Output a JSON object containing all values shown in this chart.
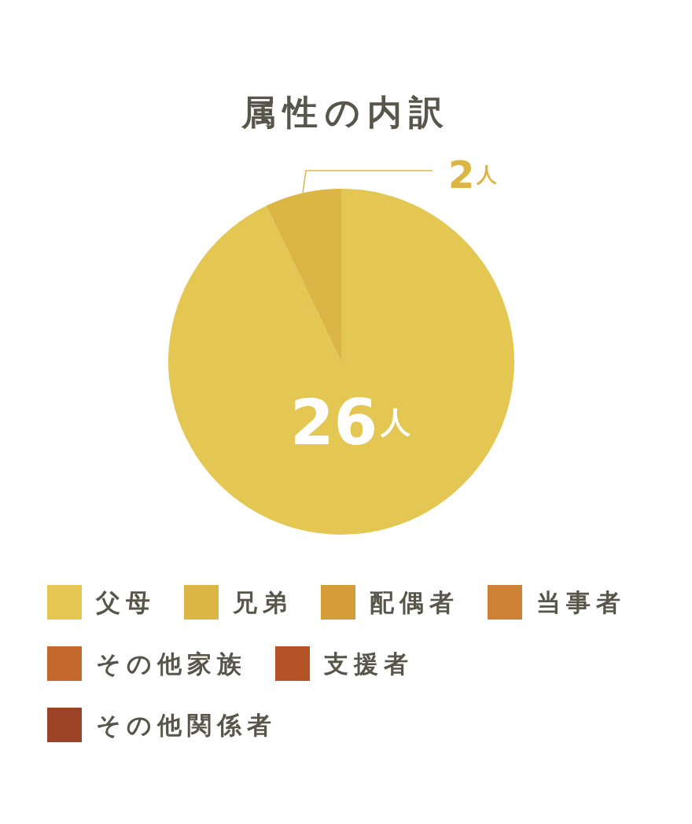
{
  "chart_data": {
    "type": "pie",
    "title": "属性の内訳",
    "categories": [
      "父母",
      "兄弟",
      "配偶者",
      "当事者",
      "その他家族",
      "支援者",
      "その他関係者"
    ],
    "values": [
      26,
      2,
      0,
      0,
      0,
      0,
      0
    ],
    "colors": [
      "#e4c752",
      "#dcb644",
      "#d59c3a",
      "#cd8236",
      "#c4692e",
      "#b35326",
      "#9c4226"
    ],
    "value_labels": [
      "26人",
      "2人",
      null,
      null,
      null,
      null,
      null
    ],
    "legend": "bottom"
  }
}
